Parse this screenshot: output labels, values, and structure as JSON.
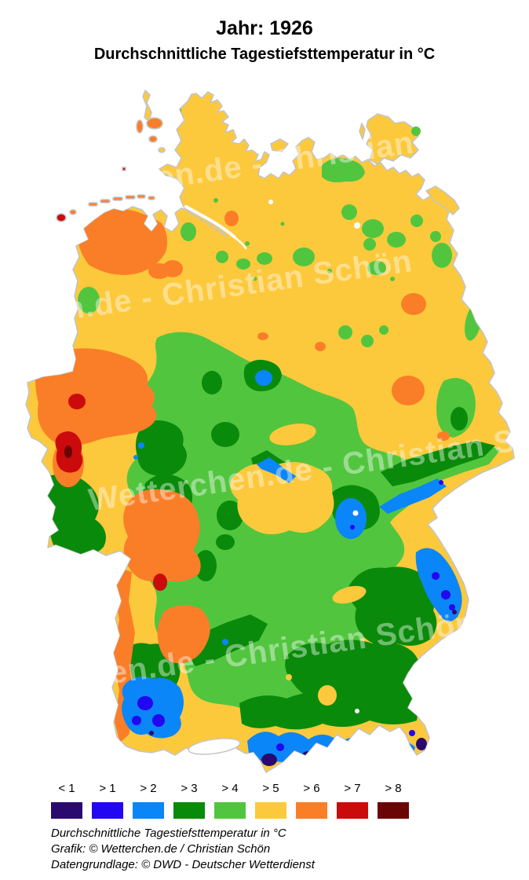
{
  "header": {
    "title": "Jahr: 1926",
    "subtitle": "Durchschnittliche Tagestiefsttemperatur in °C"
  },
  "map": {
    "watermark": "Wetterchen.de - Christian Schön",
    "base_color": "#FDC93C",
    "coast_color": "#C4C4C4",
    "background": "#FFFFFF"
  },
  "legend": {
    "items": [
      {
        "label": "< 1",
        "color": "#2A0A6E"
      },
      {
        "label": "> 1",
        "color": "#2307F0"
      },
      {
        "label": "> 2",
        "color": "#0A86F8"
      },
      {
        "label": "> 3",
        "color": "#0A8A0A"
      },
      {
        "label": "> 4",
        "color": "#52C53F"
      },
      {
        "label": "> 5",
        "color": "#FDC93C"
      },
      {
        "label": "> 6",
        "color": "#FA7E28"
      },
      {
        "label": "> 7",
        "color": "#CB0B0B"
      },
      {
        "label": "> 8",
        "color": "#6B0404"
      }
    ]
  },
  "footer": {
    "line1": "Durchschnittliche Tagestiefsttemperatur in °C",
    "line2": "Grafik: © Wetterchen.de / Christian Schön",
    "line3": "Datengrundlage: © DWD - Deutscher Wetterdienst"
  }
}
